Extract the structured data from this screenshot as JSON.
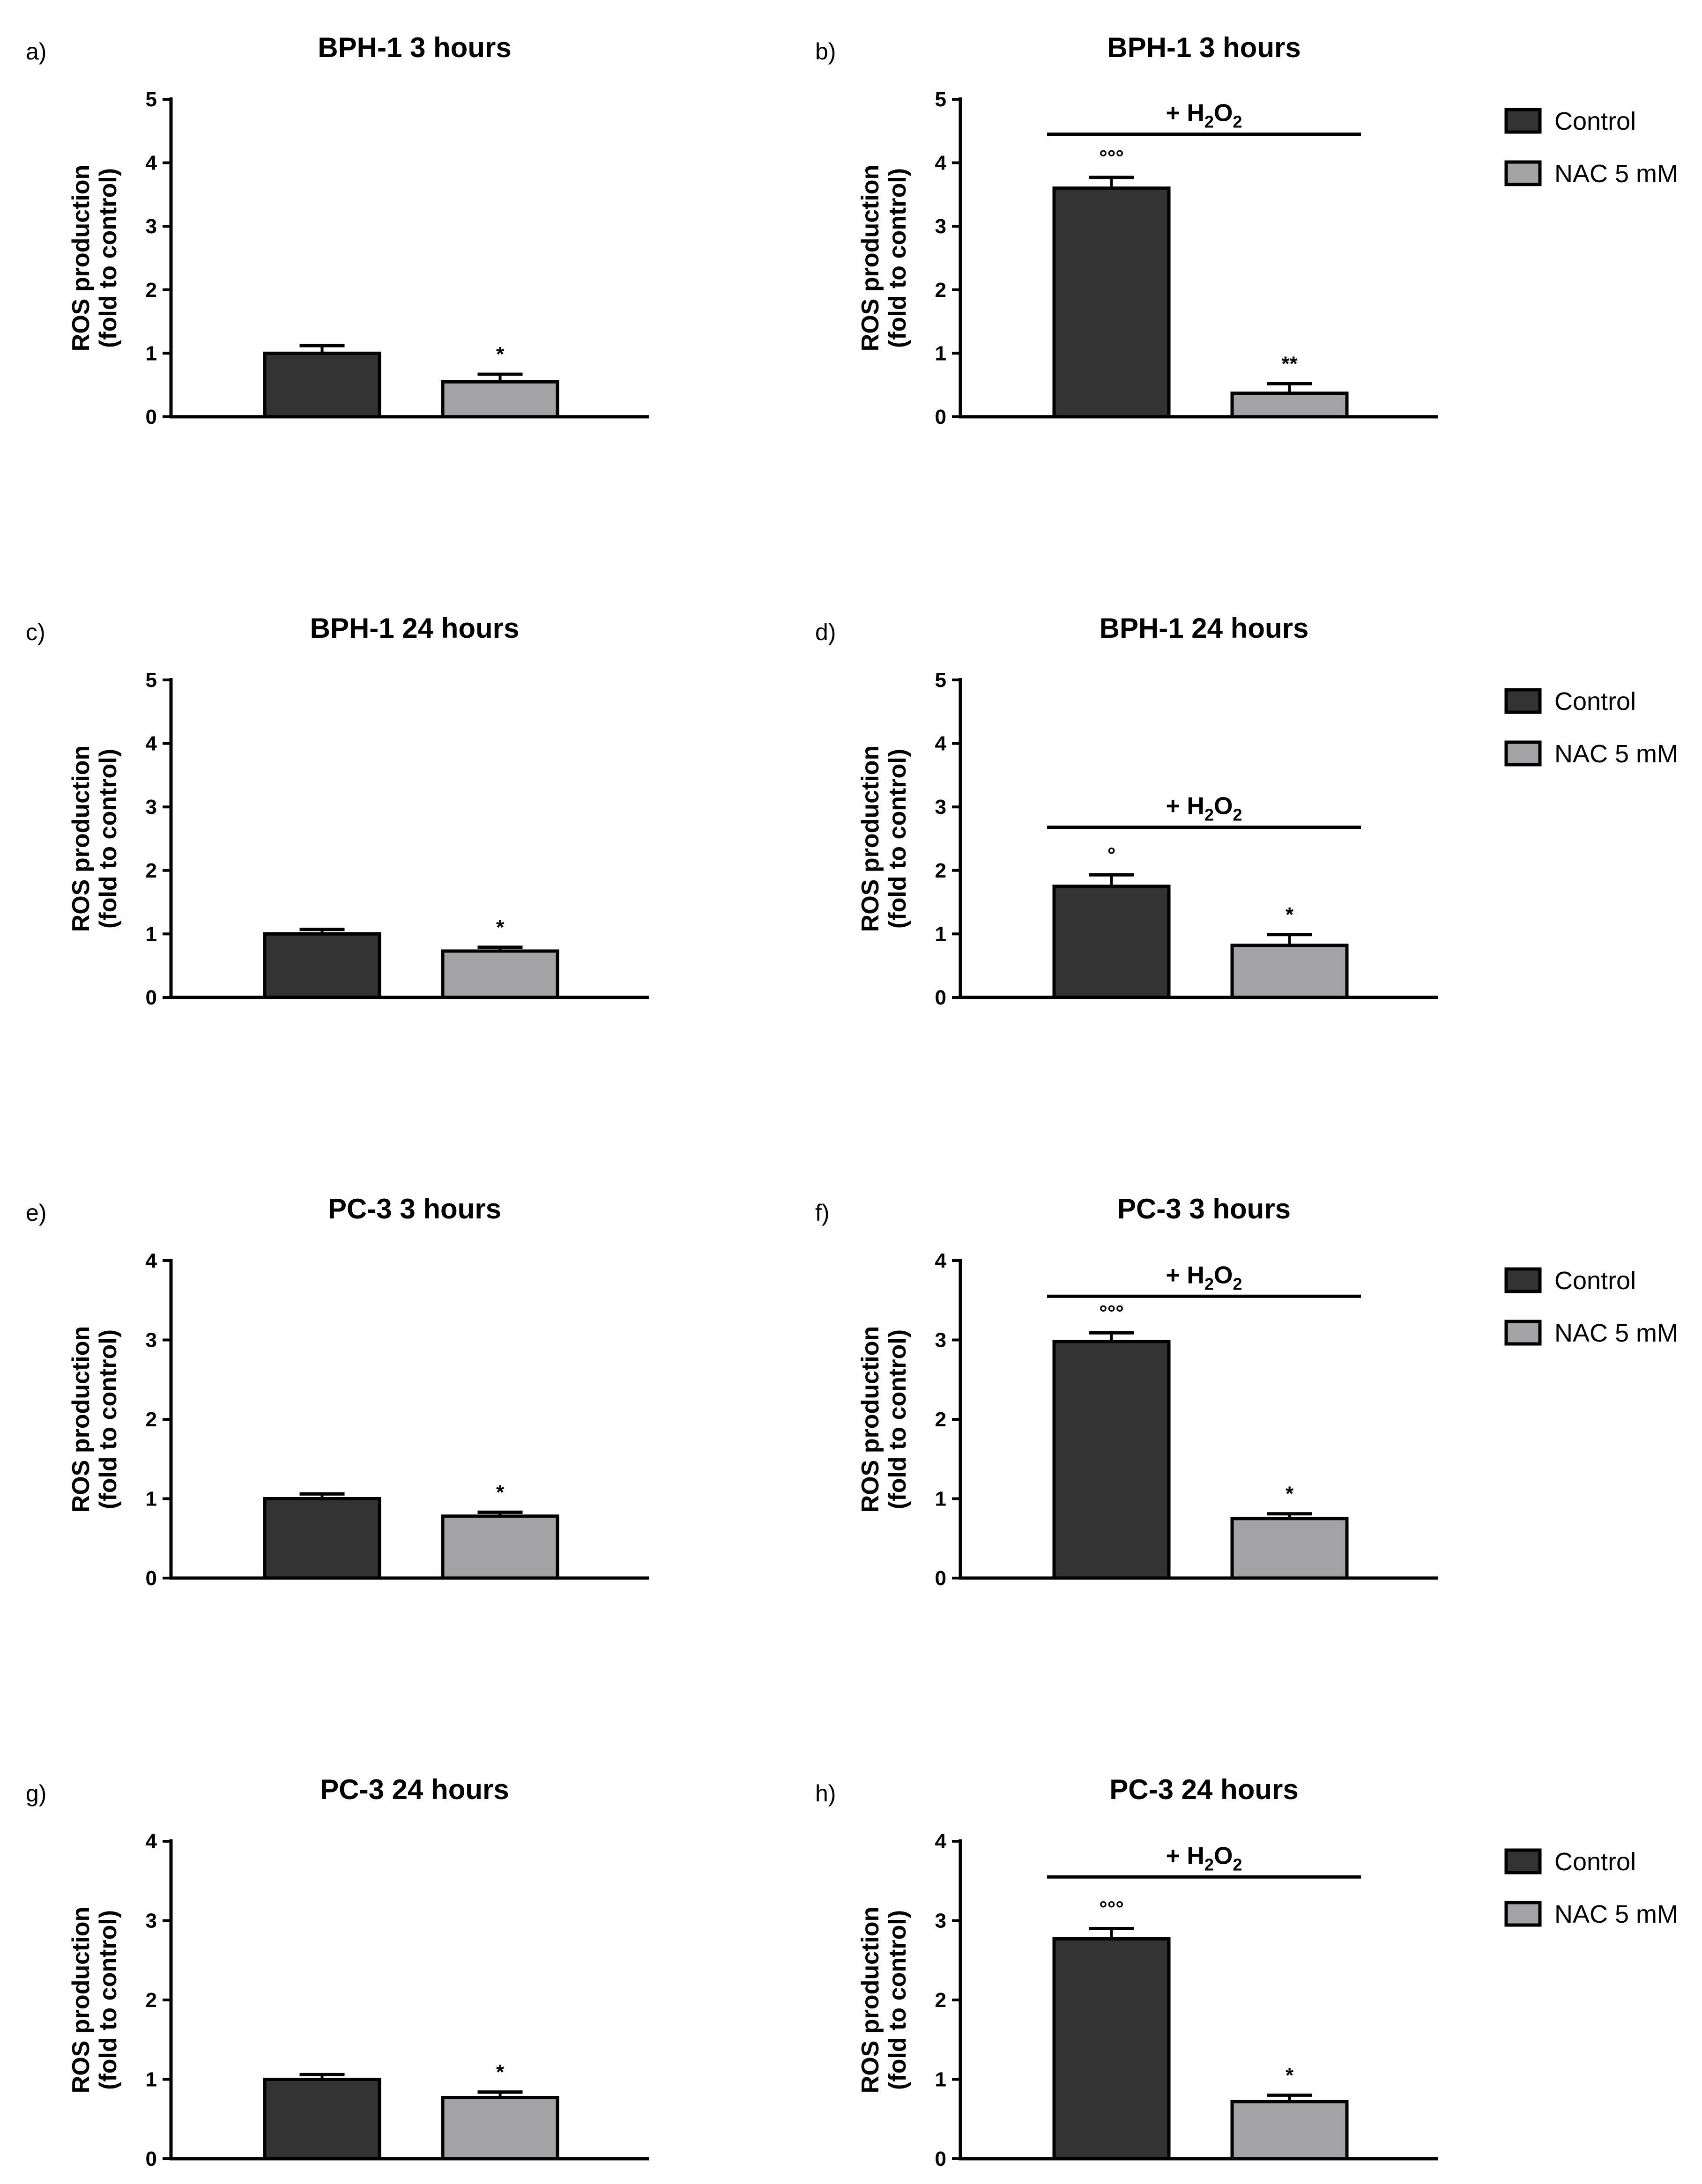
{
  "colors": {
    "control": "#333333",
    "nac": "#a3a3a5",
    "axis": "#000000"
  },
  "legend": {
    "items": [
      {
        "label": "Control",
        "color": "#333333"
      },
      {
        "label": "NAC 5 mM",
        "color": "#a3a3a5"
      }
    ]
  },
  "chart_data": [
    {
      "type": "bar",
      "panel": "a)",
      "title": "BPH-1 3 hours",
      "ylabel": [
        "ROS production",
        "(fold to control)"
      ],
      "ylim": [
        0,
        5
      ],
      "yticks": [
        "0",
        "1",
        "2",
        "3",
        "4",
        "5"
      ],
      "condition": "",
      "series": [
        {
          "name": "Control",
          "value": 1.0,
          "error": 0.12,
          "mark": ""
        },
        {
          "name": "NAC 5 mM",
          "value": 0.55,
          "error": 0.12,
          "mark": "*"
        }
      ]
    },
    {
      "type": "bar",
      "panel": "b)",
      "title": "BPH-1 3 hours",
      "ylabel": [
        "ROS production",
        "(fold to control)"
      ],
      "ylim": [
        0,
        5
      ],
      "yticks": [
        "0",
        "1",
        "2",
        "3",
        "4",
        "5"
      ],
      "condition": "+ H2O2",
      "series": [
        {
          "name": "Control",
          "value": 3.6,
          "error": 0.17,
          "mark": "°°°"
        },
        {
          "name": "NAC 5 mM",
          "value": 0.37,
          "error": 0.15,
          "mark": "**"
        }
      ]
    },
    {
      "type": "bar",
      "panel": "c)",
      "title": "BPH-1 24 hours",
      "ylabel": [
        "ROS production",
        "(fold to control)"
      ],
      "ylim": [
        0,
        5
      ],
      "yticks": [
        "0",
        "1",
        "2",
        "3",
        "4",
        "5"
      ],
      "condition": "",
      "series": [
        {
          "name": "Control",
          "value": 1.0,
          "error": 0.07,
          "mark": ""
        },
        {
          "name": "NAC 5 mM",
          "value": 0.73,
          "error": 0.06,
          "mark": "*"
        }
      ]
    },
    {
      "type": "bar",
      "panel": "d)",
      "title": "BPH-1 24 hours",
      "ylabel": [
        "ROS production",
        "(fold to control)"
      ],
      "ylim": [
        0,
        5
      ],
      "yticks": [
        "0",
        "1",
        "2",
        "3",
        "4",
        "5"
      ],
      "condition": "+ H2O2",
      "series": [
        {
          "name": "Control",
          "value": 1.75,
          "error": 0.18,
          "mark": "°"
        },
        {
          "name": "NAC 5 mM",
          "value": 0.82,
          "error": 0.17,
          "mark": "*"
        }
      ]
    },
    {
      "type": "bar",
      "panel": "e)",
      "title": "PC-3 3 hours",
      "ylabel": [
        "ROS production",
        "(fold to control)"
      ],
      "ylim": [
        0,
        4
      ],
      "yticks": [
        "0",
        "1",
        "2",
        "3",
        "4"
      ],
      "condition": "",
      "series": [
        {
          "name": "Control",
          "value": 1.0,
          "error": 0.06,
          "mark": ""
        },
        {
          "name": "NAC 5 mM",
          "value": 0.78,
          "error": 0.05,
          "mark": "*"
        }
      ]
    },
    {
      "type": "bar",
      "panel": "f)",
      "title": "PC-3 3 hours",
      "ylabel": [
        "ROS production",
        "(fold to control)"
      ],
      "ylim": [
        0,
        4
      ],
      "yticks": [
        "0",
        "1",
        "2",
        "3",
        "4"
      ],
      "condition": "+ H2O2",
      "series": [
        {
          "name": "Control",
          "value": 2.98,
          "error": 0.11,
          "mark": "°°°"
        },
        {
          "name": "NAC 5 mM",
          "value": 0.75,
          "error": 0.06,
          "mark": "*"
        }
      ]
    },
    {
      "type": "bar",
      "panel": "g)",
      "title": "PC-3 24 hours",
      "ylabel": [
        "ROS production",
        "(fold to control)"
      ],
      "ylim": [
        0,
        4
      ],
      "yticks": [
        "0",
        "1",
        "2",
        "3",
        "4"
      ],
      "condition": "",
      "series": [
        {
          "name": "Control",
          "value": 1.0,
          "error": 0.06,
          "mark": ""
        },
        {
          "name": "NAC 5 mM",
          "value": 0.77,
          "error": 0.07,
          "mark": "*"
        }
      ]
    },
    {
      "type": "bar",
      "panel": "h)",
      "title": "PC-3 24 hours",
      "ylabel": [
        "ROS production",
        "(fold to control)"
      ],
      "ylim": [
        0,
        4
      ],
      "yticks": [
        "0",
        "1",
        "2",
        "3",
        "4"
      ],
      "condition": "+ H2O2",
      "series": [
        {
          "name": "Control",
          "value": 2.77,
          "error": 0.13,
          "mark": "°°°"
        },
        {
          "name": "NAC 5 mM",
          "value": 0.72,
          "error": 0.08,
          "mark": "*"
        }
      ]
    }
  ]
}
